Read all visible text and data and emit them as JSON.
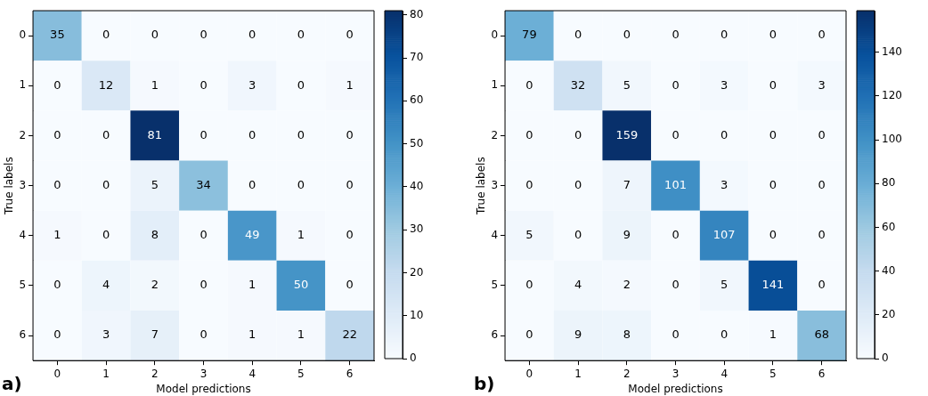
{
  "chart_data": [
    {
      "type": "heatmap",
      "xlabel": "Model predictions",
      "ylabel": "True labels",
      "annotations": [
        "a)"
      ],
      "data_labels": true,
      "categories": [
        "0",
        "1",
        "2",
        "3",
        "4",
        "5",
        "6"
      ],
      "y_categories": [
        "0",
        "1",
        "2",
        "3",
        "4",
        "5",
        "6"
      ],
      "clim": [
        0,
        81
      ],
      "cticks": [
        0,
        10,
        20,
        30,
        40,
        50,
        60,
        70,
        80
      ],
      "grid": false,
      "cells": [
        [
          35,
          0,
          0,
          0,
          0,
          0,
          0
        ],
        [
          0,
          12,
          1,
          0,
          3,
          0,
          1
        ],
        [
          0,
          0,
          81,
          0,
          0,
          0,
          0
        ],
        [
          0,
          0,
          5,
          34,
          0,
          0,
          0
        ],
        [
          1,
          0,
          8,
          0,
          49,
          1,
          0
        ],
        [
          0,
          4,
          2,
          0,
          1,
          50,
          0
        ],
        [
          0,
          3,
          7,
          0,
          1,
          1,
          22
        ]
      ]
    },
    {
      "type": "heatmap",
      "xlabel": "Model predictions",
      "ylabel": "True labels",
      "annotations": [
        "b)"
      ],
      "data_labels": true,
      "categories": [
        "0",
        "1",
        "2",
        "3",
        "4",
        "5",
        "6"
      ],
      "y_categories": [
        "0",
        "1",
        "2",
        "3",
        "4",
        "5",
        "6"
      ],
      "clim": [
        0,
        159
      ],
      "cticks": [
        0,
        20,
        40,
        60,
        80,
        100,
        120,
        140
      ],
      "grid": false,
      "cells": [
        [
          79,
          0,
          0,
          0,
          0,
          0,
          0
        ],
        [
          0,
          32,
          5,
          0,
          3,
          0,
          3
        ],
        [
          0,
          0,
          159,
          0,
          0,
          0,
          0
        ],
        [
          0,
          0,
          7,
          101,
          3,
          0,
          0
        ],
        [
          5,
          0,
          9,
          0,
          107,
          0,
          0
        ],
        [
          0,
          4,
          2,
          0,
          5,
          141,
          0
        ],
        [
          0,
          9,
          8,
          0,
          0,
          1,
          68
        ]
      ]
    }
  ]
}
